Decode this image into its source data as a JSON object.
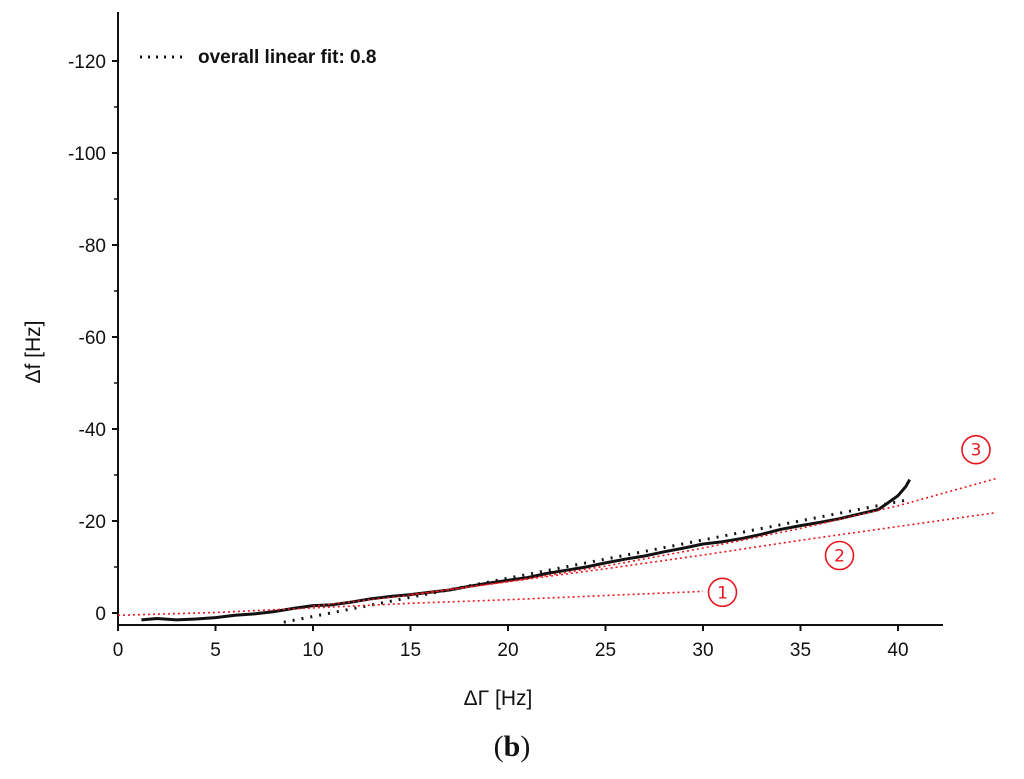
{
  "chart_data": {
    "type": "line",
    "xlabel": "ΔΓ [Hz]",
    "ylabel": "Δf [Hz]",
    "xlim": [
      0,
      42.5
    ],
    "ylim": [
      2,
      -130
    ],
    "y_axis_inverted": true,
    "xticks": [
      0,
      5,
      10,
      15,
      20,
      25,
      30,
      35,
      40
    ],
    "yticks": [
      0,
      -20,
      -40,
      -60,
      -80,
      -100,
      -120
    ],
    "legend": {
      "placement": "top-left",
      "entries": [
        {
          "label": "overall linear fit: 0.8",
          "style": "dotted",
          "color": "#111111"
        }
      ]
    },
    "series": [
      {
        "style": "solid",
        "color": "#111111",
        "points": [
          [
            1.2,
            1.5
          ],
          [
            2,
            1.2
          ],
          [
            3,
            1.5
          ],
          [
            4,
            1.3
          ],
          [
            5,
            1.0
          ],
          [
            6,
            0.5
          ],
          [
            7,
            0.2
          ],
          [
            8,
            -0.3
          ],
          [
            9,
            -1.0
          ],
          [
            10,
            -1.6
          ],
          [
            11,
            -1.8
          ],
          [
            12,
            -2.4
          ],
          [
            13,
            -3.1
          ],
          [
            14,
            -3.6
          ],
          [
            15,
            -4.0
          ],
          [
            16,
            -4.5
          ],
          [
            17,
            -5.0
          ],
          [
            18,
            -5.8
          ],
          [
            19,
            -6.5
          ],
          [
            20,
            -7.1
          ],
          [
            21,
            -7.7
          ],
          [
            22,
            -8.6
          ],
          [
            23,
            -9.3
          ],
          [
            24,
            -10.0
          ],
          [
            25,
            -10.9
          ],
          [
            26,
            -11.7
          ],
          [
            27,
            -12.4
          ],
          [
            28,
            -13.3
          ],
          [
            29,
            -14.1
          ],
          [
            30,
            -15.0
          ],
          [
            31,
            -15.5
          ],
          [
            32,
            -16.2
          ],
          [
            33,
            -17.1
          ],
          [
            34,
            -18.2
          ],
          [
            35,
            -19.0
          ],
          [
            36,
            -19.7
          ],
          [
            37,
            -20.5
          ],
          [
            38,
            -21.5
          ],
          [
            39,
            -22.5
          ],
          [
            39.5,
            -24.0
          ],
          [
            40,
            -25.5
          ],
          [
            40.4,
            -27.5
          ],
          [
            40.6,
            -29.0
          ]
        ]
      },
      {
        "name": "overall linear fit: 0.8",
        "style": "dotted",
        "color": "#111111",
        "points": [
          [
            8.5,
            2
          ],
          [
            40.5,
            -24.6
          ]
        ]
      },
      {
        "name": "①",
        "style": "dotted",
        "color": "#e8171e",
        "points": [
          [
            0,
            0.5
          ],
          [
            5,
            -0.1
          ],
          [
            10,
            -1.1
          ],
          [
            15,
            -2.1
          ],
          [
            20,
            -2.9
          ],
          [
            25,
            -3.8
          ],
          [
            30,
            -4.7
          ]
        ]
      },
      {
        "name": "②",
        "style": "dotted",
        "color": "#e8171e",
        "points": [
          [
            10,
            -1.5
          ],
          [
            15,
            -3.9
          ],
          [
            20,
            -6.8
          ],
          [
            25,
            -9.6
          ],
          [
            30,
            -12.6
          ],
          [
            35,
            -15.8
          ],
          [
            40,
            -18.8
          ],
          [
            45,
            -21.8
          ]
        ]
      },
      {
        "name": "③",
        "style": "dotted",
        "color": "#e8171e",
        "points": [
          [
            15,
            -4.0
          ],
          [
            20,
            -6.8
          ],
          [
            25,
            -10.2
          ],
          [
            30,
            -14.1
          ],
          [
            35,
            -18.4
          ],
          [
            40,
            -23.3
          ],
          [
            45,
            -29.2
          ]
        ]
      }
    ],
    "annotations": [
      {
        "text": "①",
        "x": 31,
        "y": -4.5
      },
      {
        "text": "②",
        "x": 37,
        "y": -12.5
      },
      {
        "text": "③",
        "x": 44,
        "y": -35.5
      }
    ],
    "grid": false
  },
  "panel_label": {
    "open": "(",
    "letter": "b",
    "close": ")"
  }
}
